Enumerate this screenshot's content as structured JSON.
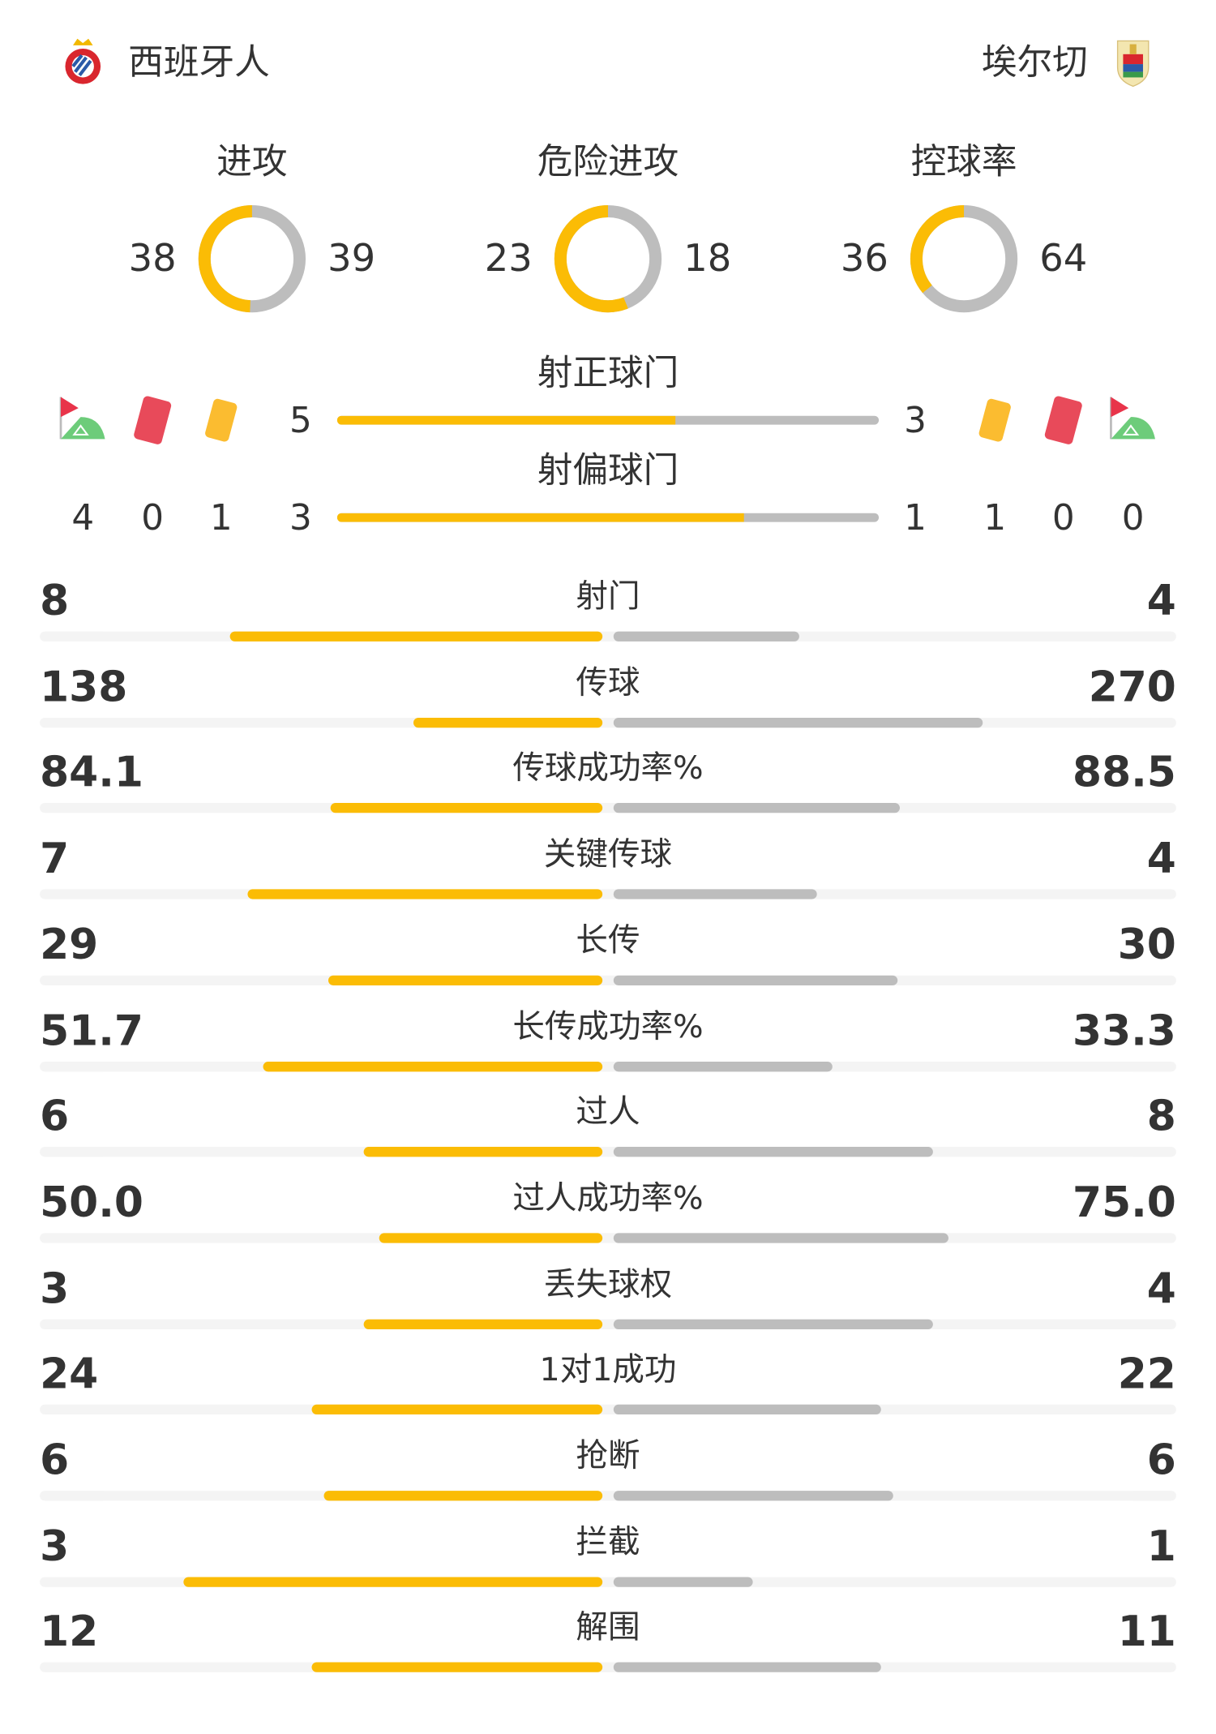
{
  "home": {
    "name": "西班牙人",
    "logo": "espanyol-crest"
  },
  "away": {
    "name": "埃尔切",
    "logo": "elche-crest"
  },
  "colors": {
    "home": "#fbbc05",
    "away": "#bdbdbd",
    "red_card": "#e84a5a",
    "yellow_card": "#fbbc30",
    "corner_flag": "#e8344a",
    "corner_field": "#6dcc7a"
  },
  "donuts": [
    {
      "label": "进攻",
      "home": 38,
      "away": 39
    },
    {
      "label": "危险进攻",
      "home": 23,
      "away": 18
    },
    {
      "label": "控球率",
      "home": 36,
      "away": 64
    }
  ],
  "shots_on_target": {
    "label": "射正球门",
    "home": 5,
    "away": 3
  },
  "shots_off_target": {
    "label": "射偏球门",
    "home": 3,
    "away": 1
  },
  "cards": {
    "home": {
      "corners": 4,
      "red": 0,
      "yellow": 1
    },
    "away": {
      "yellow": 1,
      "red": 0,
      "corners": 0
    }
  },
  "stats": [
    {
      "label": "射门",
      "home": "8",
      "away": "4"
    },
    {
      "label": "传球",
      "home": "138",
      "away": "270"
    },
    {
      "label": "传球成功率%",
      "home": "84.1",
      "away": "88.5"
    },
    {
      "label": "关键传球",
      "home": "7",
      "away": "4"
    },
    {
      "label": "长传",
      "home": "29",
      "away": "30"
    },
    {
      "label": "长传成功率%",
      "home": "51.7",
      "away": "33.3"
    },
    {
      "label": "过人",
      "home": "6",
      "away": "8"
    },
    {
      "label": "过人成功率%",
      "home": "50.0",
      "away": "75.0"
    },
    {
      "label": "丢失球权",
      "home": "3",
      "away": "4"
    },
    {
      "label": "1对1成功",
      "home": "24",
      "away": "22"
    },
    {
      "label": "抢断",
      "home": "6",
      "away": "6"
    },
    {
      "label": "拦截",
      "home": "3",
      "away": "1"
    },
    {
      "label": "解围",
      "home": "12",
      "away": "11"
    }
  ]
}
